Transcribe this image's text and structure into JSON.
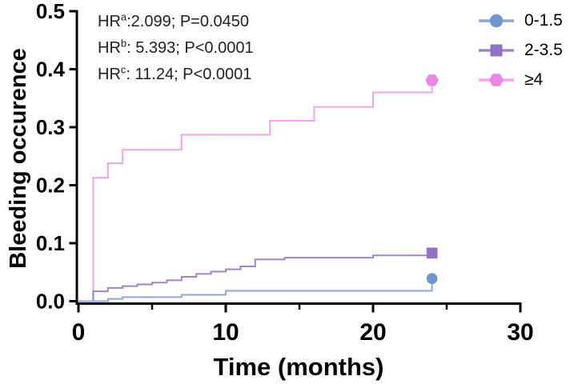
{
  "chart_data": {
    "type": "line",
    "subtype": "kaplan-meier-step",
    "title": "",
    "xlabel": "Time (months)",
    "ylabel": "Bleeding occurence",
    "xlim": [
      0,
      30
    ],
    "ylim": [
      0,
      0.5
    ],
    "grid": false,
    "legend_position": "top-right",
    "x_ticks_major": [
      0,
      10,
      20,
      30
    ],
    "x_ticks_minor": [
      5,
      15,
      25
    ],
    "y_ticks": [
      [
        0.0,
        "0.0"
      ],
      [
        0.1,
        "0.1"
      ],
      [
        0.2,
        "0.2"
      ],
      [
        0.3,
        "0.3"
      ],
      [
        0.4,
        "0.4"
      ],
      [
        0.5,
        "0.5"
      ]
    ],
    "axis_color": "#000000",
    "series": [
      {
        "name": "0-1.5",
        "marker": "circle",
        "line_color": "#8aa9da",
        "marker_color": "#6e96cf",
        "steps": [
          [
            0,
            0
          ],
          [
            2,
            0.004
          ],
          [
            3,
            0.007
          ],
          [
            7,
            0.011
          ],
          [
            10,
            0.018
          ],
          [
            24,
            0.039
          ]
        ],
        "end_marker_at": [
          24,
          0.039
        ]
      },
      {
        "name": "2-3.5",
        "marker": "square",
        "line_color": "#9d85cd",
        "marker_color": "#9172c4",
        "steps": [
          [
            0,
            0
          ],
          [
            1,
            0.017
          ],
          [
            2,
            0.023
          ],
          [
            3,
            0.026
          ],
          [
            4,
            0.029
          ],
          [
            5,
            0.032
          ],
          [
            6,
            0.036
          ],
          [
            7,
            0.042
          ],
          [
            8,
            0.047
          ],
          [
            9,
            0.051
          ],
          [
            10,
            0.055
          ],
          [
            11,
            0.06
          ],
          [
            12,
            0.072
          ],
          [
            14,
            0.075
          ],
          [
            20,
            0.079
          ],
          [
            24,
            0.083
          ]
        ],
        "end_marker_at": [
          24,
          0.083
        ]
      },
      {
        "name": "≥4",
        "marker": "hexagon",
        "line_color": "#f3a4ed",
        "marker_color": "#ec85e6",
        "steps": [
          [
            0,
            0
          ],
          [
            1,
            0.213
          ],
          [
            2,
            0.238
          ],
          [
            3,
            0.261
          ],
          [
            7,
            0.287
          ],
          [
            13,
            0.311
          ],
          [
            16,
            0.335
          ],
          [
            20,
            0.36
          ],
          [
            24,
            0.381
          ]
        ],
        "end_marker_at": [
          24,
          0.381
        ]
      }
    ],
    "annotations": [
      {
        "prefix": "HR",
        "sup": "a",
        "rest": ":2.099; P=0.0450"
      },
      {
        "prefix": "HR",
        "sup": "b",
        "rest": ": 5.393; P<0.0001"
      },
      {
        "prefix": "HR",
        "sup": "c",
        "rest": ": 11.24; P<0.0001"
      }
    ]
  }
}
